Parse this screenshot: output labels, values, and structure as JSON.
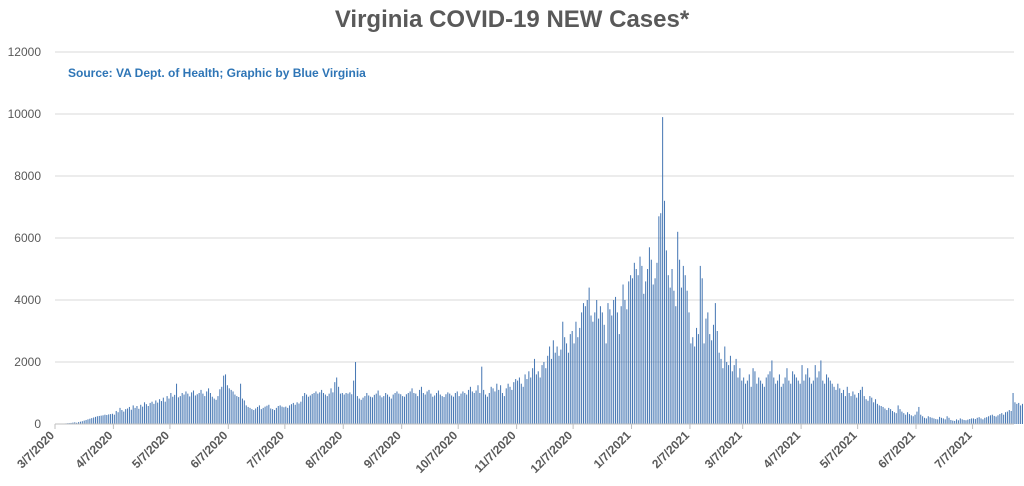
{
  "chart_data": {
    "type": "bar",
    "title": "Virginia COVID-19 NEW Cases*",
    "annotation": "Source: VA Dept. of Health; Graphic by Blue Virginia",
    "xlabel": "",
    "ylabel": "",
    "ylim": [
      0,
      12000
    ],
    "yticks": [
      0,
      2000,
      4000,
      6000,
      8000,
      10000,
      12000
    ],
    "xlim": [
      "2020-03-07",
      "2021-07-28"
    ],
    "xtick_labels": [
      "3/7/2020",
      "4/7/2020",
      "5/7/2020",
      "6/7/2020",
      "7/7/2020",
      "8/7/2020",
      "9/7/2020",
      "10/7/2020",
      "11/7/2020",
      "12/7/2020",
      "1/7/2021",
      "2/7/2021",
      "3/7/2021",
      "4/7/2021",
      "5/7/2021",
      "6/7/2021",
      "7/7/2021"
    ],
    "grid": true,
    "bar_color": "#4a7ab5",
    "monthly_daily_values": [
      {
        "from": "3/7/2020",
        "values": [
          2,
          3,
          5,
          8,
          12,
          18,
          25,
          30,
          35,
          45,
          55,
          40,
          60,
          75,
          90,
          110,
          130,
          150,
          170,
          190,
          210,
          230,
          250,
          260,
          270,
          280,
          300,
          290,
          310,
          320,
          330
        ]
      },
      {
        "from": "4/7/2020",
        "values": [
          300,
          420,
          380,
          520,
          450,
          400,
          480,
          500,
          550,
          460,
          600,
          520,
          580,
          490,
          620,
          560,
          700,
          640,
          580,
          680,
          720,
          650,
          760,
          690,
          800,
          740,
          850,
          720,
          900,
          820
        ]
      },
      {
        "from": "5/7/2020",
        "values": [
          1000,
          880,
          940,
          1300,
          860,
          900,
          1000,
          950,
          1050,
          980,
          890,
          1020,
          1080,
          920,
          960,
          1000,
          1100,
          980,
          900,
          1050,
          1150,
          1000,
          880,
          820,
          780,
          900,
          1120,
          1200,
          1560,
          1600,
          1250
        ]
      },
      {
        "from": "6/7/2020",
        "values": [
          1150,
          1100,
          1050,
          950,
          900,
          870,
          1300,
          820,
          760,
          600,
          550,
          520,
          480,
          450,
          500,
          550,
          600,
          480,
          520,
          560,
          590,
          620,
          500,
          480,
          450,
          520,
          580,
          600,
          560,
          540
        ]
      },
      {
        "from": "7/7/2020",
        "values": [
          560,
          520,
          600,
          640,
          680,
          620,
          700,
          660,
          720,
          900,
          1000,
          950,
          880,
          920,
          970,
          1000,
          1050,
          980,
          1020,
          1100,
          1000,
          950,
          900,
          980,
          1150,
          1020,
          1350,
          1500,
          1200,
          980,
          1000
        ]
      },
      {
        "from": "8/7/2020",
        "values": [
          950,
          1000,
          980,
          1020,
          960,
          1400,
          2000,
          900,
          820,
          780,
          850,
          900,
          1000,
          920,
          880,
          860,
          940,
          980,
          1080,
          920,
          860,
          900,
          1000,
          950,
          880,
          820,
          950,
          1000,
          1050,
          980,
          960
        ]
      },
      {
        "from": "9/7/2020",
        "values": [
          900,
          880,
          960,
          1000,
          1050,
          1150,
          1000,
          980,
          900,
          1100,
          1200,
          1000,
          950,
          1050,
          1100,
          980,
          880,
          920,
          1000,
          1080,
          950,
          900,
          870,
          960,
          1020,
          980,
          920,
          880,
          1000,
          1050
        ]
      },
      {
        "from": "10/7/2020",
        "values": [
          900,
          980,
          1050,
          1000,
          950,
          1100,
          1200,
          1050,
          1000,
          1080,
          1250,
          1000,
          1850,
          1100,
          950,
          880,
          1000,
          1200,
          1150,
          1050,
          1300,
          1100,
          1250,
          1000,
          900,
          1150,
          1300,
          1200,
          1100,
          1350,
          1450
        ]
      },
      {
        "from": "11/7/2020",
        "values": [
          1400,
          1500,
          1300,
          1200,
          1600,
          1450,
          1700,
          1500,
          1800,
          2100,
          1600,
          1700,
          1500,
          1900,
          2000,
          1800,
          2200,
          2500,
          2100,
          2700,
          2300,
          2500,
          2200,
          2400,
          3300,
          2800,
          2600,
          2300,
          2900,
          3000
        ]
      },
      {
        "from": "12/7/2020",
        "values": [
          2600,
          3300,
          2800,
          3100,
          3600,
          3900,
          3800,
          4000,
          4400,
          3500,
          3300,
          3600,
          4000,
          3400,
          3800,
          3600,
          3200,
          2600,
          3900,
          3700,
          3500,
          4000,
          4100,
          3600,
          2900,
          3800,
          4500,
          4000,
          3700,
          4600,
          4800
        ]
      },
      {
        "from": "1/7/2021",
        "values": [
          4700,
          5200,
          5000,
          4800,
          5400,
          5100,
          4200,
          4600,
          5000,
          5700,
          5300,
          4500,
          4700,
          5200,
          6700,
          6800,
          9900,
          7200,
          5600,
          4800,
          4400,
          5000,
          4300,
          3800,
          6200,
          5300,
          4400,
          5100,
          4800,
          4300,
          3600
        ]
      },
      {
        "from": "2/7/2021",
        "values": [
          2600,
          2800,
          2500,
          3100,
          2900,
          5100,
          4700,
          2600,
          3400,
          3600,
          2900,
          2700,
          3200,
          3900,
          3000,
          2300,
          2100,
          1800,
          2500,
          2000,
          1900,
          2200,
          1700,
          1900,
          2100,
          1500,
          1800,
          1400
        ]
      },
      {
        "from": "3/7/2021",
        "values": [
          1500,
          1300,
          1400,
          1600,
          1200,
          1800,
          1700,
          1300,
          1500,
          1400,
          1300,
          1200,
          1500,
          1600,
          1700,
          2050,
          1500,
          1300,
          1400,
          1600,
          1200,
          1300,
          1500,
          1800,
          1400,
          1300,
          1700,
          1600,
          1500,
          1400,
          1300
        ]
      },
      {
        "from": "4/7/2021",
        "values": [
          1900,
          1400,
          1600,
          1800,
          1500,
          1300,
          1400,
          1900,
          1500,
          1700,
          2050,
          1400,
          1300,
          1600,
          1500,
          1400,
          1300,
          1200,
          1100,
          1300,
          1150,
          1000,
          1100,
          900,
          1200,
          1000,
          900,
          1050,
          950,
          850
        ]
      },
      {
        "from": "5/7/2021",
        "values": [
          1000,
          1100,
          1200,
          900,
          800,
          750,
          900,
          850,
          700,
          800,
          650,
          600,
          580,
          550,
          500,
          450,
          520,
          480,
          420,
          380,
          350,
          600,
          480,
          400,
          350,
          300,
          380,
          320,
          280,
          250,
          300
        ]
      },
      {
        "from": "6/7/2021",
        "values": [
          400,
          550,
          300,
          250,
          200,
          180,
          250,
          220,
          200,
          180,
          160,
          150,
          230,
          200,
          180,
          150,
          250,
          200,
          130,
          110,
          100,
          150,
          120,
          180,
          150,
          130,
          120,
          140,
          160,
          180
        ]
      },
      {
        "from": "7/7/2021",
        "values": [
          180,
          160,
          200,
          220,
          180,
          150,
          200,
          220,
          250,
          280,
          300,
          260,
          240,
          280,
          320,
          350,
          300,
          380,
          400,
          450,
          420,
          1000,
          700,
          650,
          680,
          600,
          650
        ]
      }
    ]
  }
}
